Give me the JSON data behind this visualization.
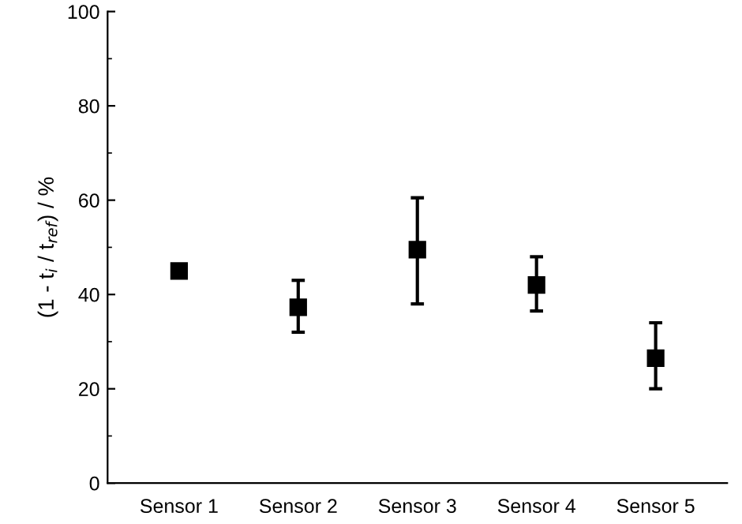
{
  "chart_data": {
    "type": "scatter",
    "ylabel": "(1 - t$_{i}$ / t$_{ref}$) / %",
    "categories": [
      "Sensor 1",
      "Sensor 2",
      "Sensor 3",
      "Sensor 4",
      "Sensor 5"
    ],
    "values": [
      45,
      37.3,
      49.5,
      42,
      26.5
    ],
    "errors": [
      null,
      [
        32,
        43
      ],
      [
        38,
        60.5
      ],
      [
        36.5,
        48
      ],
      [
        20,
        34
      ]
    ],
    "color": "#000000",
    "marker": "square",
    "ylim": [
      0,
      100
    ],
    "yticks": [
      0,
      20,
      40,
      60,
      80,
      100
    ],
    "grid": false
  }
}
